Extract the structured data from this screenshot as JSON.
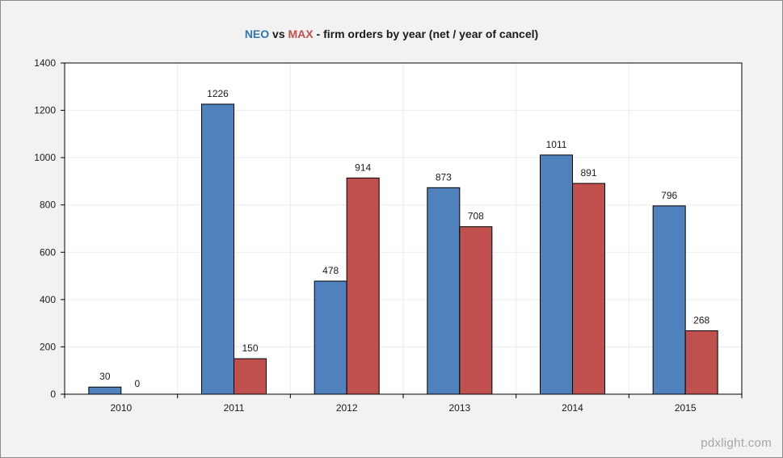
{
  "title": {
    "neo": "NEO",
    "vs": " vs ",
    "max": "MAX",
    "rest": " - firm orders by year (net / year of cancel)"
  },
  "watermark": "pdxlight.com",
  "colors": {
    "neo": "#4f81bd",
    "max": "#c0504d",
    "background": "#f2f2f2",
    "plot": "#ffffff"
  },
  "chart_data": {
    "type": "bar",
    "title": "NEO vs MAX - firm orders by year (net / year of cancel)",
    "categories": [
      "2010",
      "2011",
      "2012",
      "2013",
      "2014",
      "2015"
    ],
    "series": [
      {
        "name": "NEO",
        "color": "#4f81bd",
        "values": [
          30,
          1226,
          478,
          873,
          1011,
          796
        ]
      },
      {
        "name": "MAX",
        "color": "#c0504d",
        "values": [
          0,
          150,
          914,
          708,
          891,
          268
        ]
      }
    ],
    "yticks": [
      0,
      200,
      400,
      600,
      800,
      1000,
      1200,
      1400
    ],
    "ylim": [
      0,
      1400
    ],
    "xlabel": "",
    "ylabel": "",
    "grid": true,
    "data_labels": true
  }
}
